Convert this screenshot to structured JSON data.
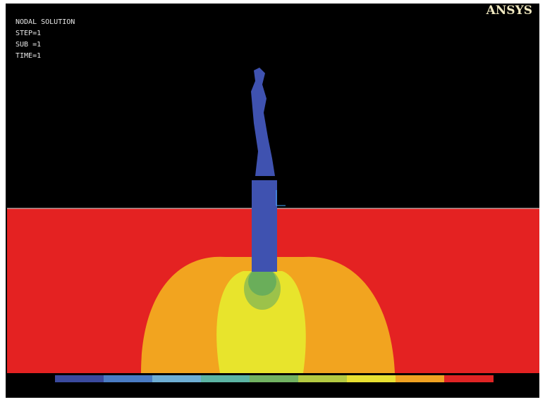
{
  "header": {
    "title": "NODAL SOLUTION",
    "lines": [
      "STEP=1",
      "SUB =1",
      "TIME=1"
    ],
    "brand": "ANSYS"
  }
}
